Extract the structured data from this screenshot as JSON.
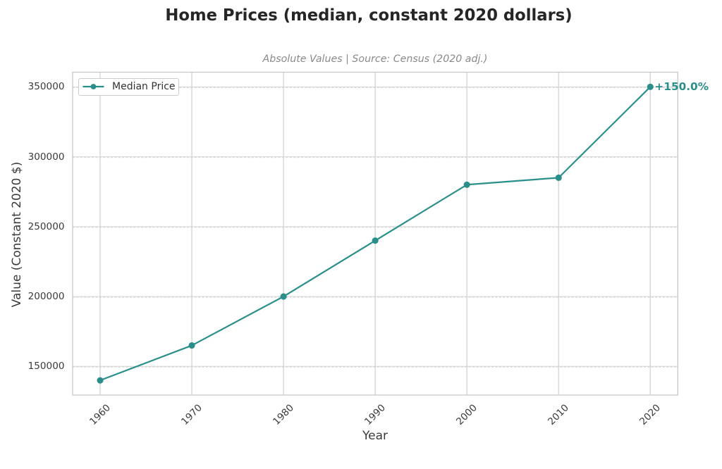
{
  "chart_data": {
    "type": "line",
    "title": "Home Prices (median, constant 2020 dollars)",
    "subtitle": "Absolute Values | Source: Census (2020 adj.)",
    "xlabel": "Year",
    "ylabel": "Value (Constant 2020 $)",
    "x": [
      1960,
      1970,
      1980,
      1990,
      2000,
      2010,
      2020
    ],
    "series": [
      {
        "name": "Median Price",
        "values": [
          140000,
          165000,
          200000,
          240000,
          280000,
          285000,
          350000
        ]
      }
    ],
    "x_tick_labels": [
      "1960",
      "1970",
      "1980",
      "1990",
      "2000",
      "2010",
      "2020"
    ],
    "y_tick_values": [
      150000,
      200000,
      250000,
      300000,
      350000
    ],
    "y_tick_labels": [
      "150000",
      "200000",
      "250000",
      "300000",
      "350000"
    ],
    "xlim": [
      1957,
      2023
    ],
    "ylim": [
      129500,
      360500
    ],
    "grid": "on",
    "legend_position": "upper-left",
    "annotation": {
      "text": "+150.0%",
      "x": 2020,
      "y": 350000
    },
    "colors": {
      "series": "#2a8f8a",
      "annotation": "#2a8f8a",
      "grid": "#d4d4d4",
      "spine": "#c8c8c8",
      "title": "#262626",
      "subtitle": "#8a8a8a",
      "tick": "#3a3a3a"
    }
  }
}
